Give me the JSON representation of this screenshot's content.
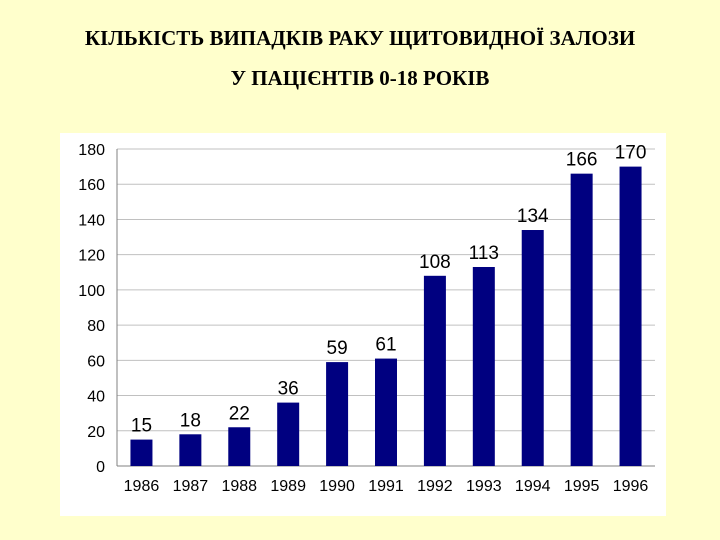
{
  "slide": {
    "title_line_1": "КІЛЬКІСТЬ  ВИПАДКІВ  РАКУ  ЩИТОВИДНОЇ  ЗАЛОЗИ",
    "title_line_2": "У  ПАЦІЄНТІВ  0-18  РОКІВ"
  },
  "chart_data": {
    "type": "bar",
    "title": "",
    "xlabel": "",
    "ylabel": "",
    "categories": [
      "1986",
      "1987",
      "1988",
      "1989",
      "1990",
      "1991",
      "1992",
      "1993",
      "1994",
      "1995",
      "1996"
    ],
    "values": [
      15,
      18,
      22,
      36,
      59,
      61,
      108,
      113,
      134,
      166,
      170
    ],
    "ylim": [
      0,
      180
    ],
    "y_ticks": [
      0,
      20,
      40,
      60,
      80,
      100,
      120,
      140,
      160,
      180
    ],
    "grid": true,
    "legend": "none",
    "data_labels": true,
    "bar_color": "#000080",
    "grid_color": "#c0c0c0",
    "panel_color": "#ffffff",
    "background_color": "#ffffcc"
  }
}
